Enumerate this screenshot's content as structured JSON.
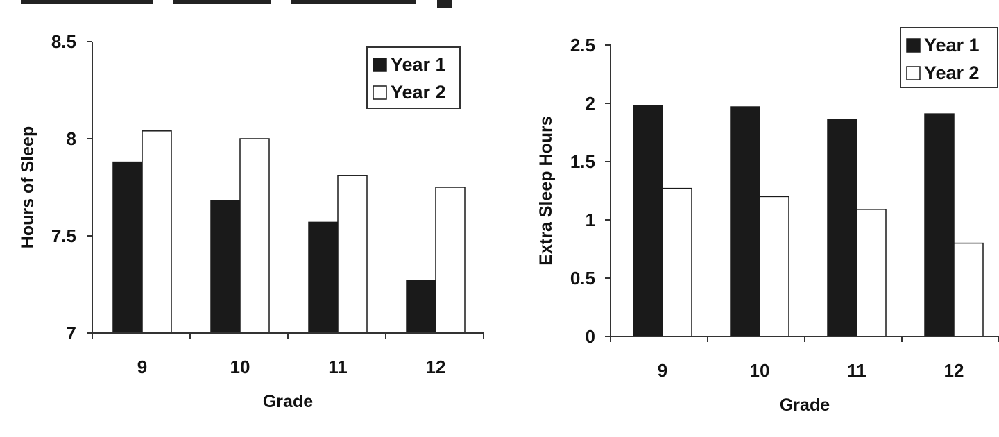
{
  "header_fragment": {
    "text": "",
    "visible": true
  },
  "chart_data": [
    {
      "type": "bar",
      "categories": [
        "9",
        "10",
        "11",
        "12"
      ],
      "series": [
        {
          "name": "Year 1",
          "color": "#1a1a1a",
          "values": [
            7.88,
            7.68,
            7.57,
            7.27
          ]
        },
        {
          "name": "Year 2",
          "color": "#ffffff",
          "values": [
            8.04,
            8.0,
            7.81,
            7.75
          ]
        }
      ],
      "title": "",
      "xlabel": "Grade",
      "ylabel": "Hours of Sleep",
      "ylim": [
        7,
        8.5
      ],
      "yticks": [
        "7",
        "7.5",
        "8",
        "8.5"
      ],
      "legend_position": "top-right",
      "grid": false
    },
    {
      "type": "bar",
      "categories": [
        "9",
        "10",
        "11",
        "12"
      ],
      "series": [
        {
          "name": "Year 1",
          "color": "#1a1a1a",
          "values": [
            1.98,
            1.97,
            1.86,
            1.91
          ]
        },
        {
          "name": "Year 2",
          "color": "#ffffff",
          "values": [
            1.27,
            1.2,
            1.09,
            0.8
          ]
        }
      ],
      "title": "",
      "xlabel": "Grade",
      "ylabel": "Extra Sleep Hours",
      "ylim": [
        0,
        2.5
      ],
      "yticks": [
        "0",
        "0.5",
        "1",
        "1.5",
        "2",
        "2.5"
      ],
      "legend_position": "top-right",
      "grid": false
    }
  ]
}
